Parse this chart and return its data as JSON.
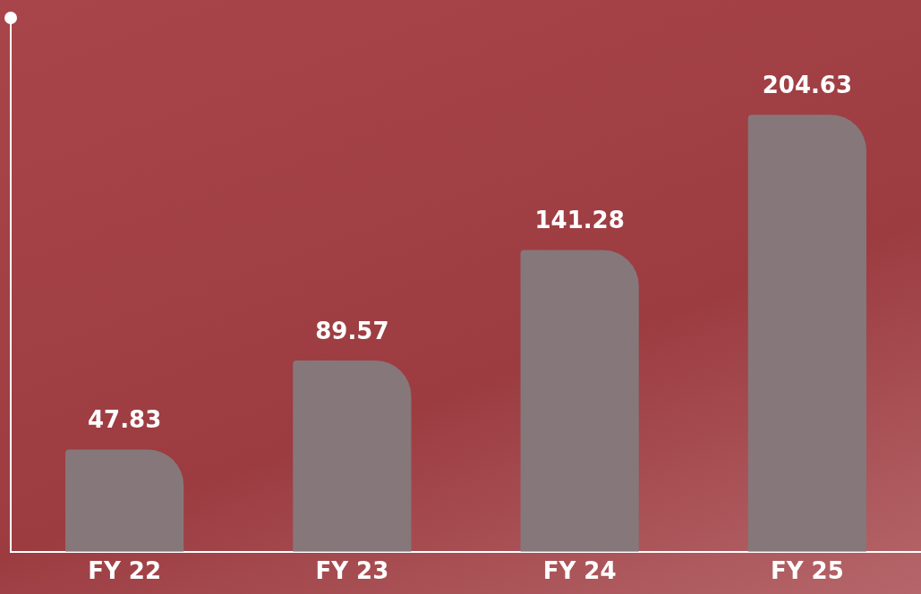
{
  "chart_data": {
    "type": "bar",
    "categories": [
      "FY 22",
      "FY 23",
      "FY 24",
      "FY 25"
    ],
    "values": [
      47.83,
      89.57,
      141.28,
      204.63
    ],
    "color": "#86777a",
    "data_labels": true,
    "tick_labels": "x"
  }
}
